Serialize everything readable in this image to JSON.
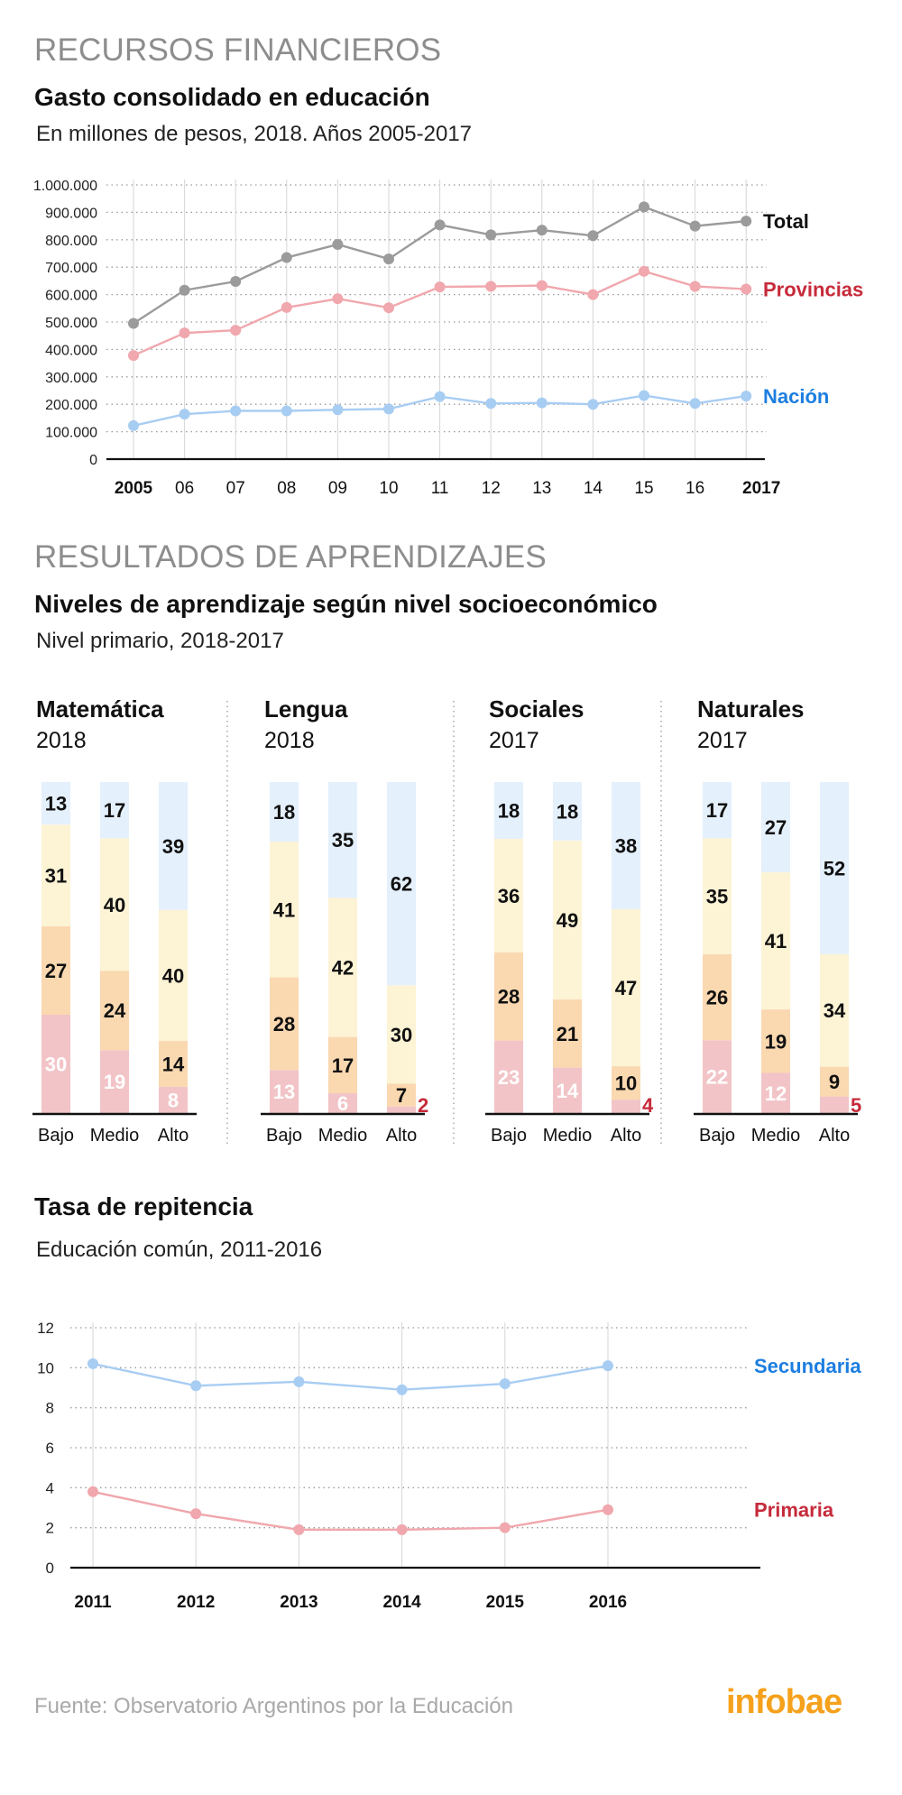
{
  "section1": {
    "label": "RECURSOS FINANCIEROS",
    "title": "Gasto consolidado en educación",
    "subtitle": "En millones de pesos, 2018. Años 2005-2017"
  },
  "section2": {
    "label": "RESULTADOS DE APRENDIZAJES",
    "title": "Niveles de aprendizaje según nivel socioeconómico",
    "subtitle": "Nivel primario, 2018-2017"
  },
  "section3": {
    "title": "Tasa de repitencia",
    "subtitle": "Educación común, 2011-2016"
  },
  "footer": {
    "source": "Fuente: Observatorio Argentinos por la Educación",
    "logo": "infobae"
  },
  "chart_data": [
    {
      "type": "line",
      "x": [
        2005,
        2006,
        2007,
        2008,
        2009,
        2010,
        2011,
        2012,
        2013,
        2014,
        2015,
        2016,
        2017
      ],
      "xtick_labels": [
        "2005",
        "06",
        "07",
        "08",
        "09",
        "10",
        "11",
        "12",
        "13",
        "14",
        "15",
        "16",
        "2017"
      ],
      "ytick_labels": [
        "0",
        "100.000",
        "200.000",
        "300.000",
        "400.000",
        "500.000",
        "600.000",
        "700.000",
        "800.000",
        "900.000",
        "1.000.000"
      ],
      "ylim": [
        0,
        1000000
      ],
      "grid": true,
      "series": [
        {
          "name": "Total",
          "color": "#9b9b9b",
          "values": [
            495000,
            616000,
            648000,
            735000,
            783000,
            730000,
            854000,
            818000,
            835000,
            815000,
            920000,
            850000,
            868000
          ]
        },
        {
          "name": "Provincias",
          "color": "#f0a7ad",
          "values": [
            378000,
            460000,
            470000,
            553000,
            585000,
            552000,
            628000,
            630000,
            633000,
            600000,
            685000,
            630000,
            620000
          ]
        },
        {
          "name": "Nación",
          "color": "#a8cdf2",
          "values": [
            122000,
            164000,
            176000,
            176000,
            180000,
            183000,
            228000,
            203000,
            205000,
            200000,
            232000,
            203000,
            230000
          ]
        }
      ],
      "series_label_colors": {
        "Total": "#111111",
        "Provincias": "#c62a3a",
        "Nación": "#1c7ee0"
      }
    },
    {
      "type": "bar",
      "stacked": true,
      "categories": [
        "Bajo",
        "Medio",
        "Alto"
      ],
      "segment_colors": [
        "#f2c4c7",
        "#fad8b0",
        "#fdf3d5",
        "#e4f0fc"
      ],
      "panels": [
        {
          "subject": "Matemática",
          "year": "2018",
          "bars": [
            [
              30,
              27,
              31,
              13
            ],
            [
              19,
              24,
              40,
              17
            ],
            [
              8,
              14,
              40,
              39
            ]
          ]
        },
        {
          "subject": "Lengua",
          "year": "2018",
          "bars": [
            [
              13,
              28,
              41,
              18
            ],
            [
              6,
              17,
              42,
              35
            ],
            [
              2,
              7,
              30,
              62
            ]
          ]
        },
        {
          "subject": "Sociales",
          "year": "2017",
          "bars": [
            [
              23,
              28,
              36,
              18
            ],
            [
              14,
              21,
              49,
              18
            ],
            [
              4,
              10,
              47,
              38
            ]
          ]
        },
        {
          "subject": "Naturales",
          "year": "2017",
          "bars": [
            [
              22,
              26,
              35,
              17
            ],
            [
              12,
              19,
              41,
              27
            ],
            [
              5,
              9,
              34,
              52
            ]
          ]
        }
      ]
    },
    {
      "type": "line",
      "x": [
        2011,
        2012,
        2013,
        2014,
        2015,
        2016
      ],
      "xtick_labels": [
        "2011",
        "2012",
        "2013",
        "2014",
        "2015",
        "2016"
      ],
      "ytick_labels": [
        "0",
        "2",
        "4",
        "6",
        "8",
        "10",
        "12"
      ],
      "ylim": [
        0,
        12
      ],
      "grid": true,
      "series": [
        {
          "name": "Secundaria",
          "color": "#a8cdf2",
          "values": [
            10.2,
            9.1,
            9.3,
            8.9,
            9.2,
            10.1
          ]
        },
        {
          "name": "Primaria",
          "color": "#f0a7ad",
          "values": [
            3.8,
            2.7,
            1.9,
            1.9,
            2.0,
            2.9
          ]
        }
      ],
      "series_label_colors": {
        "Secundaria": "#1c7ee0",
        "Primaria": "#c62a3a"
      }
    }
  ]
}
